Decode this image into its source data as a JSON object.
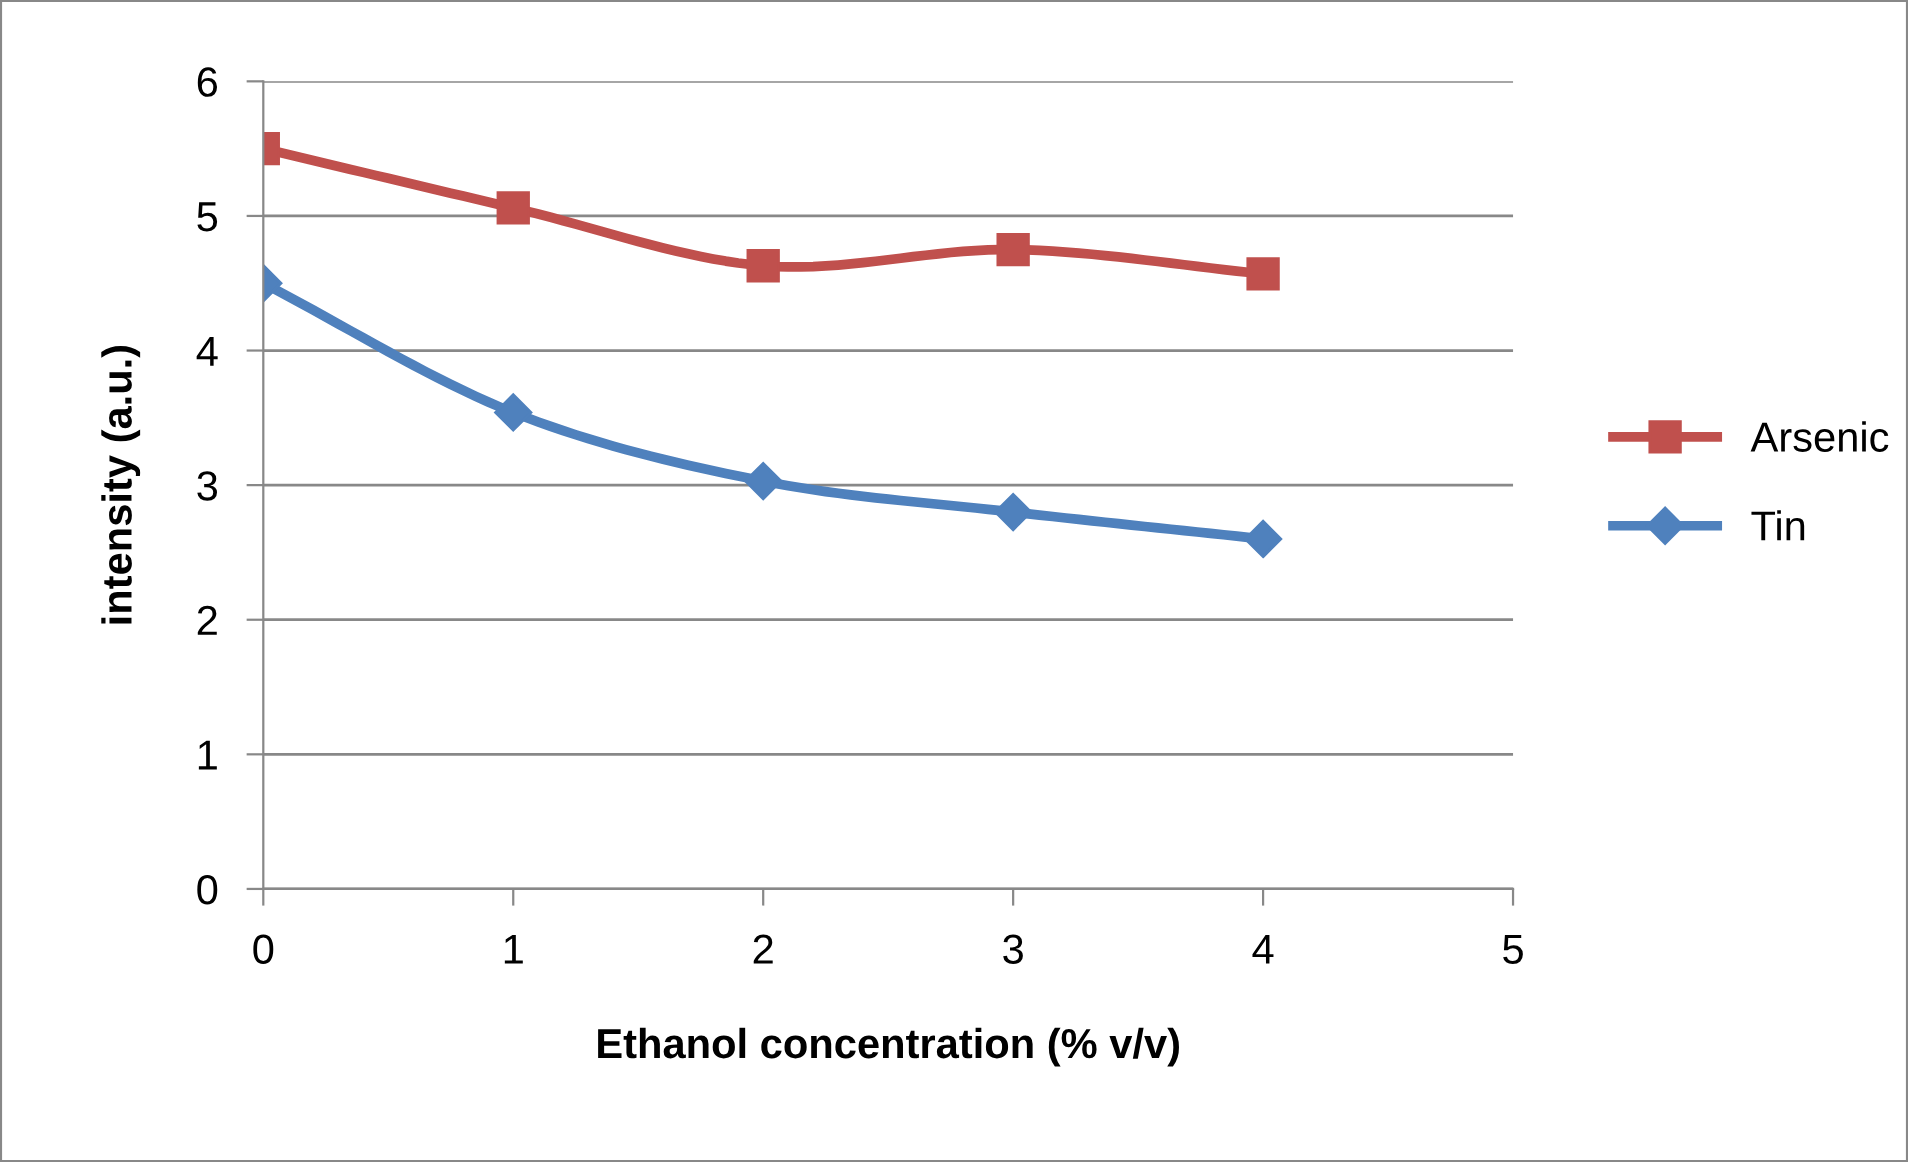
{
  "chart_data": {
    "type": "line",
    "xlabel": "Ethanol concentration (% v/v)",
    "ylabel": "intensity (a.u.)",
    "x": [
      0,
      1,
      2,
      3,
      4
    ],
    "series": [
      {
        "name": "Arsenic",
        "color": "#c0504d",
        "marker": "square",
        "values": [
          5.5,
          5.06,
          4.63,
          4.75,
          4.57
        ]
      },
      {
        "name": "Tin",
        "color": "#4f81bd",
        "marker": "diamond",
        "values": [
          4.5,
          3.54,
          3.03,
          2.8,
          2.6
        ]
      }
    ],
    "xlim": [
      0,
      5
    ],
    "xticks": [
      0,
      1,
      2,
      3,
      4,
      5
    ],
    "ylim": [
      0,
      6
    ],
    "yticks": [
      0,
      1,
      2,
      3,
      4,
      5,
      6
    ],
    "grid": "y",
    "legend": "right",
    "line_style": "solid"
  }
}
